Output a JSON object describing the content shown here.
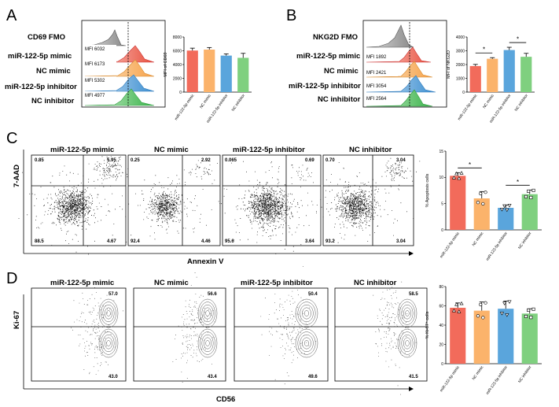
{
  "panel_labels": {
    "A": "A",
    "B": "B",
    "C": "C",
    "D": "D"
  },
  "samples": [
    "miR-122-5p mimic",
    "NC mimic",
    "miR-122-5p inhibitor",
    "NC inhibitor"
  ],
  "colors": {
    "mimic": "#f26b5b",
    "nc_mimic": "#fbb36b",
    "inhibitor": "#5aa5dc",
    "nc_inhibitor": "#7fd07f",
    "fmo": "#9a9a9a"
  },
  "panelA": {
    "fmo_label": "CD69 FMO",
    "mfi": [
      "MFI 6032",
      "MFI 6173",
      "MFI 5302",
      "MFI 4977"
    ],
    "bar_ylabel": "MFI of CD69",
    "bar_yticks": [
      "0",
      "2000",
      "4000",
      "6000",
      "8000"
    ]
  },
  "panelB": {
    "fmo_label": "NKG2D FMO",
    "mfi": [
      "MFI 1892",
      "MFI 2421",
      "MFI 3054",
      "MFI 2564"
    ],
    "bar_ylabel": "MFI of NKG2D",
    "bar_yticks": [
      "0",
      "1000",
      "2000",
      "3000",
      "4000"
    ],
    "sig": [
      "*",
      "*"
    ]
  },
  "panelC": {
    "y_axis": "7-AAD",
    "x_axis": "Annexin V",
    "quadrants": [
      {
        "ul": "0.85",
        "ur": "5.95",
        "ll": "88.5",
        "lr": "4.67"
      },
      {
        "ul": "0.25",
        "ur": "2.92",
        "ll": "92.4",
        "lr": "4.46"
      },
      {
        "ul": "0.065",
        "ur": "0.69",
        "ll": "95.6",
        "lr": "3.64"
      },
      {
        "ul": "0.70",
        "ur": "3.04",
        "ll": "93.2",
        "lr": "3.04"
      }
    ],
    "bar_ylabel": "% Apoptosis cells",
    "bar_yticks": [
      "0",
      "5",
      "10",
      "15"
    ],
    "sig": [
      "*",
      "*"
    ]
  },
  "panelD": {
    "y_axis": "Ki-67",
    "x_axis": "CD56",
    "quadrants": [
      {
        "upper": "57.0",
        "lower": "43.0"
      },
      {
        "upper": "56.6",
        "lower": "43.4"
      },
      {
        "upper": "50.4",
        "lower": "49.6"
      },
      {
        "upper": "58.5",
        "lower": "41.5"
      }
    ],
    "bar_ylabel": "% Ki-67⁺ cells",
    "bar_yticks": [
      "0",
      "20",
      "40",
      "60",
      "80"
    ]
  },
  "chart_data": [
    {
      "type": "bar",
      "title": "",
      "ylabel": "MFI of CD69",
      "categories": [
        "miR-122-5p mimic",
        "NC mimic",
        "miR-122-5p inhibitor",
        "NC inhibitor"
      ],
      "values": [
        6032,
        6173,
        5302,
        4977
      ],
      "errors": [
        350,
        300,
        250,
        650
      ],
      "ylim": [
        0,
        8000
      ]
    },
    {
      "type": "bar",
      "title": "",
      "ylabel": "MFI of NKG2D",
      "categories": [
        "miR-122-5p mimic",
        "NC mimic",
        "miR-122-5p inhibitor",
        "NC inhibitor"
      ],
      "values": [
        1892,
        2421,
        3054,
        2564
      ],
      "errors": [
        120,
        80,
        200,
        250
      ],
      "ylim": [
        0,
        4000
      ]
    },
    {
      "type": "bar",
      "title": "",
      "ylabel": "% Apoptosis cells",
      "categories": [
        "miR-122-5p mimic",
        "NC mimic",
        "miR-122-5p inhibitor",
        "NC inhibitor"
      ],
      "values": [
        10.3,
        6.0,
        4.2,
        6.8
      ],
      "errors": [
        0.6,
        1.3,
        0.5,
        0.8
      ],
      "ylim": [
        0,
        15
      ]
    },
    {
      "type": "bar",
      "title": "",
      "ylabel": "% Ki-67+ cells",
      "categories": [
        "miR-122-5p mimic",
        "NC mimic",
        "miR-122-5p inhibitor",
        "NC inhibitor"
      ],
      "values": [
        58,
        55,
        57,
        52
      ],
      "errors": [
        5,
        9,
        8,
        5
      ],
      "ylim": [
        0,
        80
      ]
    }
  ]
}
